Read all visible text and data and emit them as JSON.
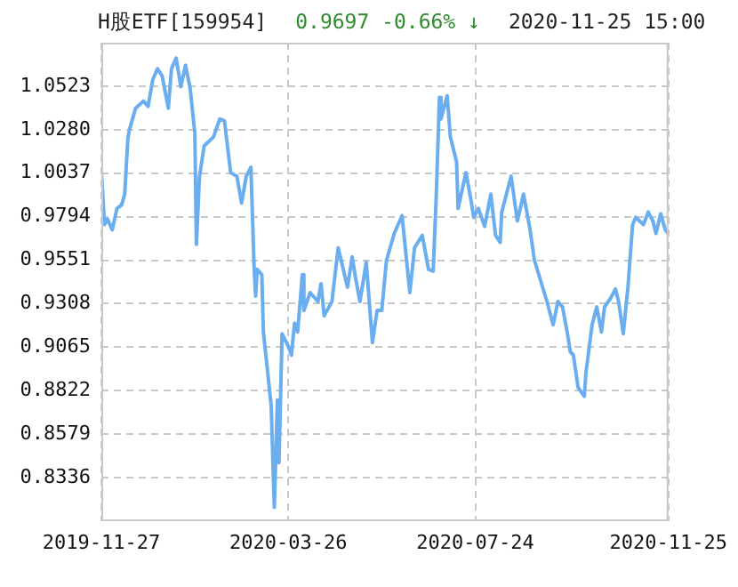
{
  "chart_data": {
    "type": "line",
    "title": "H股ETF[159954]",
    "subtitle": "0.9697   -0.66% ↓",
    "annotations": [
      "2020-11-25 15:00"
    ],
    "x": [
      "2019-11-27",
      "2019-11-29",
      "2019-12-01",
      "2019-12-04",
      "2019-12-07",
      "2019-12-10",
      "2019-12-12",
      "2019-12-14",
      "2019-12-15",
      "2019-12-19",
      "2019-12-24",
      "2019-12-27",
      "2019-12-30",
      "2020-01-02",
      "2020-01-05",
      "2020-01-09",
      "2020-01-11",
      "2020-01-14",
      "2020-01-17",
      "2020-01-20",
      "2020-01-23",
      "2020-01-26",
      "2020-01-27",
      "2020-01-29",
      "2020-02-01",
      "2020-02-07",
      "2020-02-11",
      "2020-02-14",
      "2020-02-18",
      "2020-02-22",
      "2020-02-25",
      "2020-02-28",
      "2020-03-02",
      "2020-03-04",
      "2020-03-05",
      "2020-03-06",
      "2020-03-09",
      "2020-03-10",
      "2020-03-15",
      "2020-03-17",
      "2020-03-19",
      "2020-03-20",
      "2020-03-22",
      "2020-03-26",
      "2020-03-28",
      "2020-03-30",
      "2020-04-01",
      "2020-04-04",
      "2020-04-05",
      "2020-04-09",
      "2020-04-14",
      "2020-04-16",
      "2020-04-18",
      "2020-04-23",
      "2020-04-27",
      "2020-05-03",
      "2020-05-06",
      "2020-05-08",
      "2020-05-11",
      "2020-05-15",
      "2020-05-19",
      "2020-05-22",
      "2020-05-25",
      "2020-05-28",
      "2020-06-02",
      "2020-06-07",
      "2020-06-12",
      "2020-06-15",
      "2020-06-20",
      "2020-06-24",
      "2020-06-27",
      "2020-06-29",
      "2020-07-01",
      "2020-07-02",
      "2020-07-06",
      "2020-07-08",
      "2020-07-12",
      "2020-07-13",
      "2020-07-18",
      "2020-07-21",
      "2020-07-23",
      "2020-07-26",
      "2020-07-30",
      "2020-08-03",
      "2020-08-06",
      "2020-08-09",
      "2020-08-10",
      "2020-08-16",
      "2020-08-20",
      "2020-08-24",
      "2020-08-28",
      "2020-08-31",
      "2020-09-08",
      "2020-09-12",
      "2020-09-15",
      "2020-09-18",
      "2020-09-21",
      "2020-09-23",
      "2020-09-25",
      "2020-09-28",
      "2020-10-02",
      "2020-10-03",
      "2020-10-07",
      "2020-10-10",
      "2020-10-13",
      "2020-10-15",
      "2020-10-19",
      "2020-10-22",
      "2020-10-24",
      "2020-10-27",
      "2020-10-30",
      "2020-11-02",
      "2020-11-04",
      "2020-11-09",
      "2020-11-12",
      "2020-11-15",
      "2020-11-17",
      "2020-11-20",
      "2020-11-23",
      "2020-11-25"
    ],
    "series": [
      {
        "color": "#6aaef0",
        "values": [
          1.005,
          0.975,
          0.978,
          0.972,
          0.984,
          0.986,
          0.992,
          1.023,
          1.028,
          1.04,
          1.044,
          1.041,
          1.056,
          1.062,
          1.058,
          1.04,
          1.062,
          1.068,
          1.052,
          1.064,
          1.051,
          1.026,
          0.964,
          1.002,
          1.019,
          1.024,
          1.034,
          1.033,
          1.004,
          1.002,
          0.987,
          1.002,
          1.007,
          0.952,
          0.935,
          0.95,
          0.947,
          0.915,
          0.874,
          0.817,
          0.877,
          0.842,
          0.914,
          0.907,
          0.902,
          0.92,
          0.915,
          0.947,
          0.927,
          0.937,
          0.932,
          0.942,
          0.924,
          0.932,
          0.962,
          0.94,
          0.957,
          0.946,
          0.932,
          0.954,
          0.909,
          0.927,
          0.927,
          0.955,
          0.97,
          0.98,
          0.937,
          0.962,
          0.969,
          0.95,
          0.949,
          0.992,
          1.046,
          1.034,
          1.047,
          1.024,
          1.01,
          0.984,
          1.004,
          0.99,
          0.979,
          0.984,
          0.974,
          0.992,
          0.969,
          0.965,
          0.982,
          1.002,
          0.977,
          0.992,
          0.973,
          0.955,
          0.932,
          0.919,
          0.932,
          0.929,
          0.915,
          0.904,
          0.902,
          0.884,
          0.879,
          0.892,
          0.919,
          0.929,
          0.915,
          0.929,
          0.934,
          0.939,
          0.932,
          0.914,
          0.94,
          0.975,
          0.979,
          0.975,
          0.982,
          0.977,
          0.97,
          0.981,
          0.972,
          0.9697
        ]
      }
    ],
    "xlim": [
      "2019-11-27",
      "2020-11-25"
    ],
    "xticks": [
      "2019-11-27",
      "2020-03-26",
      "2020-07-24",
      "2020-11-25"
    ],
    "ylim": [
      0.8093,
      1.0766
    ],
    "yticks": [
      0.8336,
      0.8579,
      0.8822,
      0.9065,
      0.9308,
      0.9551,
      0.9794,
      1.0037,
      {
        "value": 1.028,
        "label": "1.0280"
      },
      1.0523
    ],
    "grid": true,
    "line_style": "solid",
    "marker": "none",
    "legend": false
  }
}
